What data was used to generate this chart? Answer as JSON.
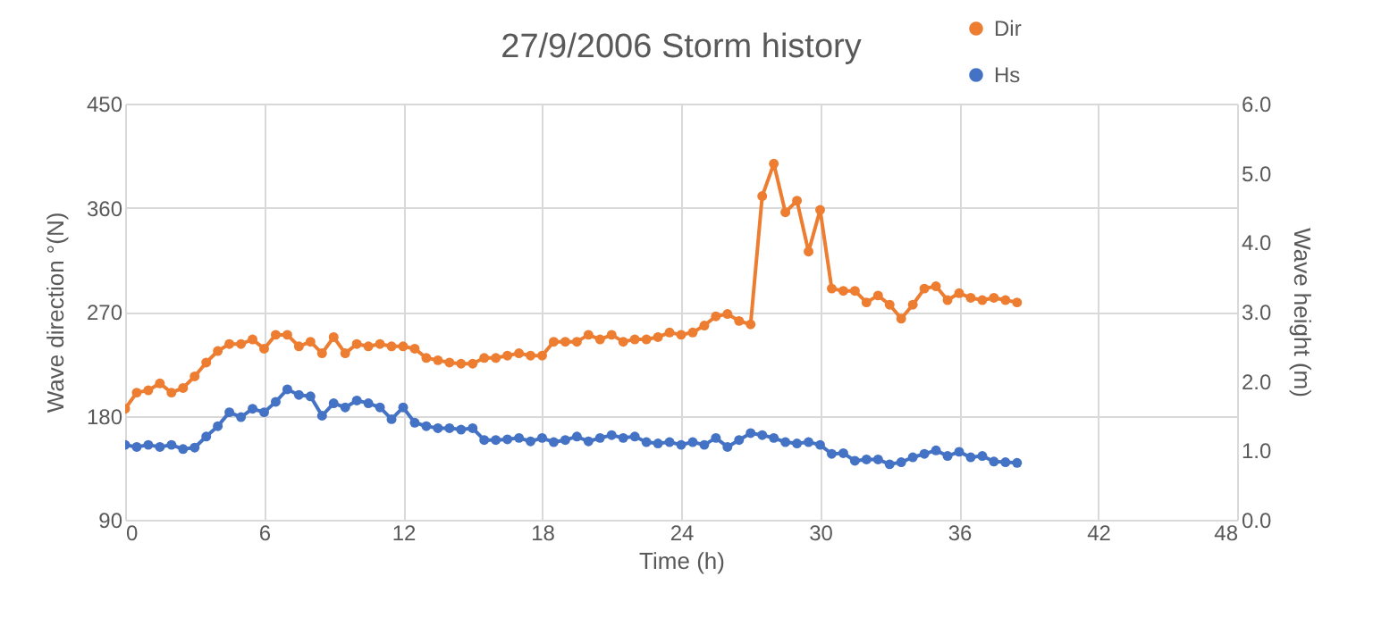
{
  "chart_data": {
    "type": "line",
    "title": "27/9/2006 Storm history",
    "xlabel": "Time (h)",
    "ylabel": "Wave direction °(N)",
    "y2label": "Wave height (m)",
    "x": [
      0,
      0.5,
      1,
      1.5,
      2,
      2.5,
      3,
      3.5,
      4,
      4.5,
      5,
      5.5,
      6,
      6.5,
      7,
      7.5,
      8,
      8.5,
      9,
      9.5,
      10,
      10.5,
      11,
      11.5,
      12,
      12.5,
      13,
      13.5,
      14,
      14.5,
      15,
      15.5,
      16,
      16.5,
      17,
      17.5,
      18,
      18.5,
      19,
      19.5,
      20,
      20.5,
      21,
      21.5,
      22,
      22.5,
      23,
      23.5,
      24,
      24.5,
      25,
      25.5,
      26,
      26.5,
      27,
      27.5,
      28,
      28.5,
      29,
      29.5,
      30,
      30.5,
      31,
      31.5,
      32,
      32.5,
      33,
      33.5,
      34,
      34.5,
      35,
      35.5,
      36,
      36.5,
      37,
      37.5,
      38,
      38.5
    ],
    "series": [
      {
        "name": "Dir",
        "color": "#ed7d31",
        "values": [
          186,
          200,
          202,
          208,
          200,
          204,
          214,
          226,
          236,
          242,
          242,
          246,
          238,
          250,
          250,
          240,
          244,
          234,
          248,
          234,
          242,
          240,
          242,
          240,
          240,
          238,
          230,
          228,
          226,
          225,
          225,
          230,
          230,
          232,
          234,
          232,
          232,
          244,
          244,
          244,
          250,
          246,
          250,
          244,
          246,
          246,
          248,
          252,
          250,
          252,
          258,
          266,
          268,
          262,
          259,
          370,
          398,
          356,
          366,
          322,
          358,
          290,
          288,
          288,
          278,
          284,
          276,
          264,
          276,
          290,
          292,
          280,
          286,
          282,
          280,
          282,
          280,
          278
        ]
      },
      {
        "name": "Hs",
        "color": "#4472c4",
        "axis": "y2",
        "values": [
          1.08,
          1.05,
          1.08,
          1.05,
          1.08,
          1.02,
          1.04,
          1.2,
          1.35,
          1.55,
          1.48,
          1.6,
          1.55,
          1.7,
          1.88,
          1.8,
          1.78,
          1.5,
          1.68,
          1.62,
          1.72,
          1.68,
          1.62,
          1.45,
          1.62,
          1.4,
          1.35,
          1.32,
          1.32,
          1.3,
          1.32,
          1.15,
          1.15,
          1.16,
          1.18,
          1.13,
          1.18,
          1.12,
          1.15,
          1.2,
          1.13,
          1.18,
          1.22,
          1.18,
          1.2,
          1.12,
          1.1,
          1.12,
          1.08,
          1.12,
          1.08,
          1.18,
          1.05,
          1.15,
          1.25,
          1.22,
          1.18,
          1.12,
          1.1,
          1.12,
          1.08,
          0.95,
          0.96,
          0.85,
          0.87,
          0.87,
          0.8,
          0.83,
          0.9,
          0.95,
          1.0,
          0.92,
          0.98,
          0.9,
          0.92,
          0.84,
          0.83,
          0.82
        ]
      }
    ],
    "xlim": [
      0,
      48
    ],
    "xticks": [
      0,
      6,
      12,
      18,
      24,
      30,
      36,
      42,
      48
    ],
    "ylim": [
      90,
      450
    ],
    "yticks": [
      90,
      180,
      270,
      360,
      450
    ],
    "y2lim": [
      0,
      6
    ],
    "y2ticks": [
      {
        "value": 0,
        "label": "0.0"
      },
      {
        "value": 1,
        "label": "1.0"
      },
      {
        "value": 2,
        "label": "2.0"
      },
      {
        "value": 3,
        "label": "3.0"
      },
      {
        "value": 4,
        "label": "4.0"
      },
      {
        "value": 5,
        "label": "5.0"
      },
      {
        "value": 6,
        "label": "6.0"
      }
    ],
    "grid": true,
    "legend": "top right",
    "marker": "circle",
    "line_style": "solid"
  }
}
